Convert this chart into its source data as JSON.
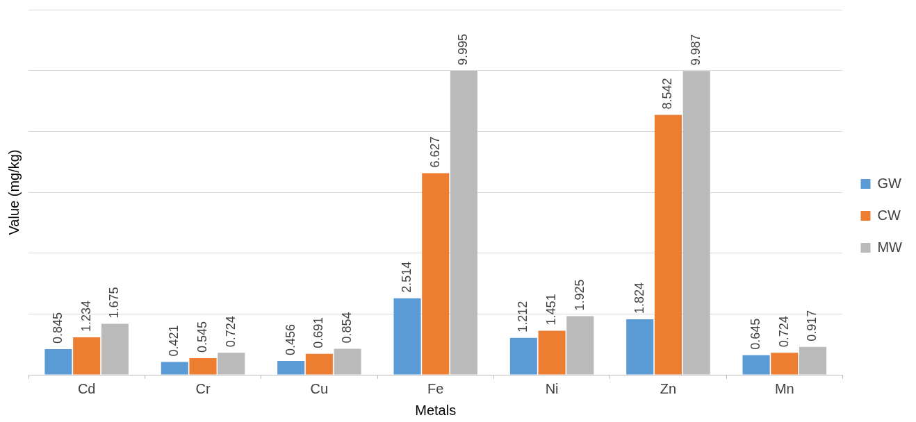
{
  "chart_data": {
    "type": "bar",
    "xlabel": "Metals",
    "ylabel": "Value (mg/kg)",
    "categories": [
      "Cd",
      "Cr",
      "Cu",
      "Fe",
      "Ni",
      "Zn",
      "Mn"
    ],
    "series": [
      {
        "name": "GW",
        "color": "#5b9bd5",
        "values": [
          0.845,
          0.421,
          0.456,
          2.514,
          1.212,
          1.824,
          0.645
        ]
      },
      {
        "name": "CW",
        "color": "#ed7d31",
        "values": [
          1.234,
          0.545,
          0.691,
          6.627,
          1.451,
          8.542,
          0.724
        ]
      },
      {
        "name": "MW",
        "color": "#bababa",
        "values": [
          1.675,
          0.724,
          0.854,
          9.995,
          1.925,
          9.987,
          0.917
        ]
      }
    ],
    "ylim": [
      0,
      12
    ],
    "yticks": [
      {
        "value": 0,
        "label": null
      },
      {
        "value": 2,
        "label": null
      },
      {
        "value": 4,
        "label": null
      },
      {
        "value": 6,
        "label": null
      },
      {
        "value": 8,
        "label": null
      },
      {
        "value": 10,
        "label": null
      },
      {
        "value": 12,
        "label": null
      }
    ],
    "tick_labels": "x",
    "grid": "y",
    "legend": "right",
    "data_labels": true
  }
}
